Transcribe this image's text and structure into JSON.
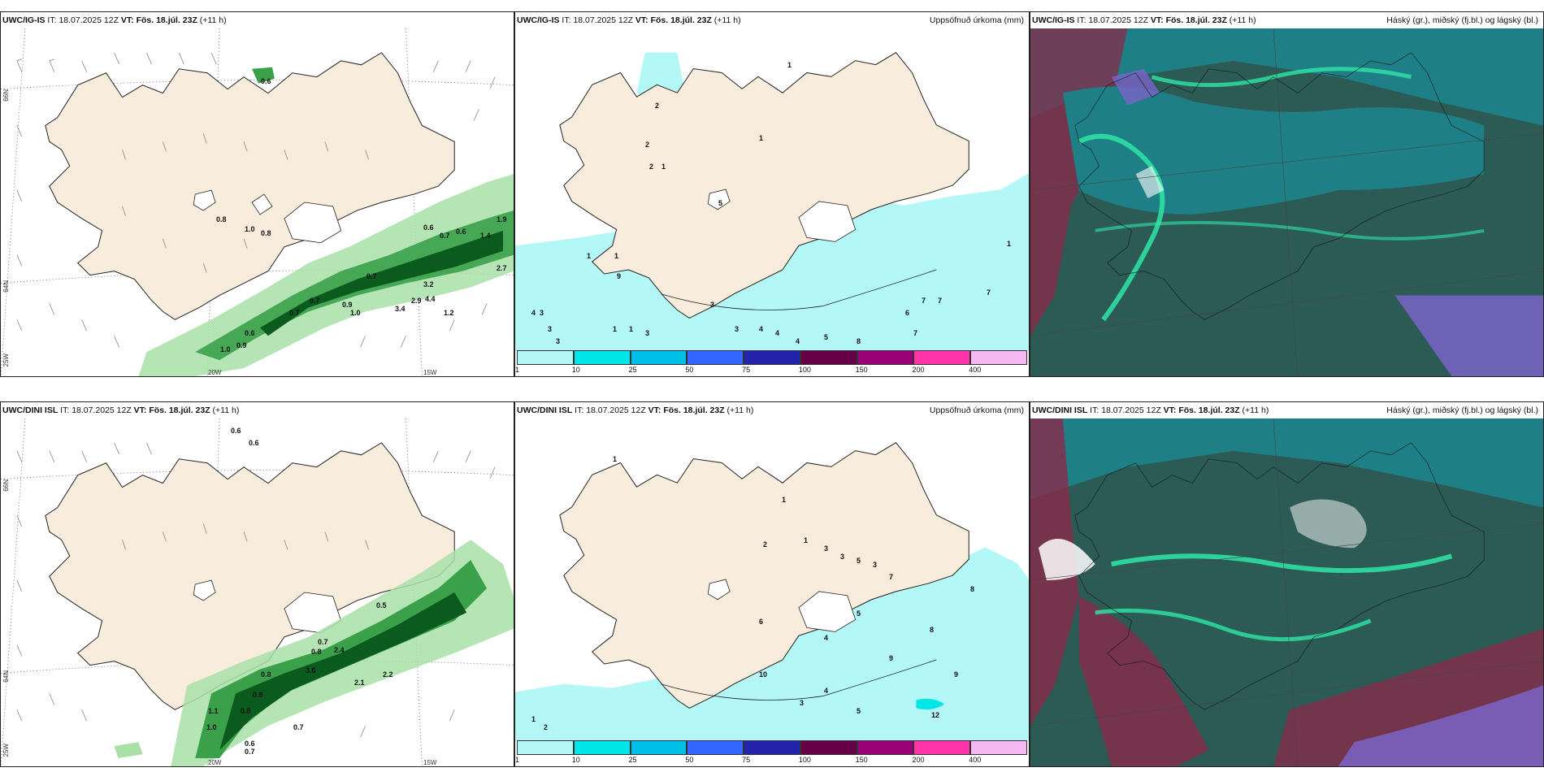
{
  "rows": [
    {
      "model": "UWC/IG-IS",
      "it_label": "IT:",
      "it_value": "18.07.2025 12Z",
      "vt_label": "VT:",
      "vt_value": "Fös. 18.júl. 23Z",
      "lead": "(+11 h)"
    },
    {
      "model": "UWC/DINI ISL",
      "it_label": "IT:",
      "it_value": "18.07.2025 12Z",
      "vt_label": "VT:",
      "vt_value": "Fös. 18.júl. 23Z",
      "lead": "(+11 h)"
    }
  ],
  "precip_title": "Uppsöfnuð úrkoma (mm)",
  "cloud_title": "Háský (gr.), miðský (fj.bl.) og lágský (bl.)",
  "axis_labels": {
    "lat_66": "66N",
    "lat_64": "64N",
    "lon_25": "25W",
    "lon_20": "20W",
    "lon_15": "15W"
  },
  "colorbar": {
    "ticks": [
      "1",
      "10",
      "25",
      "50",
      "75",
      "100",
      "150",
      "200",
      "400"
    ],
    "colors": [
      "#b3f7f7",
      "#00e6e6",
      "#00bfe6",
      "#3366ff",
      "#2222aa",
      "#660044",
      "#990077",
      "#ff33aa",
      "#f5b8f0"
    ]
  },
  "palette": {
    "land": "#f8ecdd",
    "coast": "#222222",
    "precip_fill": "#b3f7f7",
    "green_light": "#a8e0a8",
    "green_mid": "#3aa04a",
    "green_dark": "#0b5a1e",
    "cloud_dark": "#2c5a55",
    "cloud_teal": "#1f7f86",
    "cloud_bright": "#2ee6a6",
    "cloud_purple": "#7a64c8",
    "cloud_red": "#8a2a4a"
  },
  "values_top_left": [
    "0.6",
    "0.8",
    "1.0",
    "0.8",
    "0.6",
    "0.7",
    "0.6",
    "1.4",
    "1.9",
    "2.7",
    "3.2",
    "2.9",
    "3.4",
    "4.4",
    "1.2",
    "0.7",
    "0.9",
    "1.0",
    "0.7",
    "0.7",
    "0.6",
    "0.9",
    "1.0"
  ],
  "values_top_mid": [
    "1",
    "2",
    "2",
    "1",
    "1",
    "2",
    "1",
    "9",
    "4",
    "5",
    "1",
    "1",
    "1",
    "3",
    "3",
    "3",
    "4",
    "4",
    "3",
    "3",
    "3",
    "7",
    "7",
    "7",
    "6",
    "7",
    "8",
    "5",
    "4",
    "1"
  ],
  "values_bot_left": [
    "0.6",
    "0.6",
    "0.7",
    "0.5",
    "0.8",
    "2.4",
    "3.6",
    "2.2",
    "2.1",
    "0.8",
    "0.9",
    "1.1",
    "0.7",
    "0.8",
    "0.6",
    "0.7",
    "1.0"
  ],
  "values_bot_mid": [
    "1",
    "1",
    "2",
    "1",
    "3",
    "3",
    "5",
    "3",
    "7",
    "5",
    "6",
    "4",
    "8",
    "8",
    "9",
    "9",
    "10",
    "12",
    "5",
    "4",
    "3",
    "2",
    "1"
  ]
}
